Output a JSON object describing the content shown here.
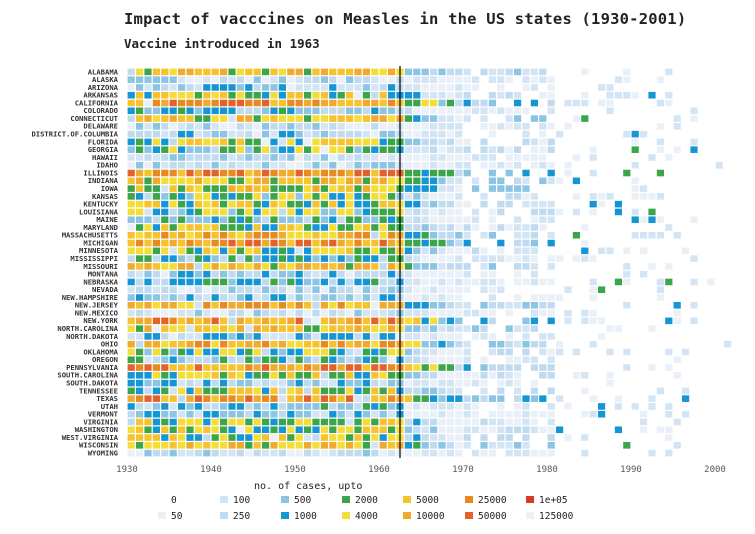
{
  "chart_data": {
    "type": "heatmap",
    "title": "Impact of vacccines on Measles in the US states (1930-2001)",
    "subtitle": "Vaccine introduced in 1963",
    "xlabel": "no. of cases, upto",
    "x_range": [
      1930,
      2000
    ],
    "x_ticks": [
      "1930",
      "1940",
      "1950",
      "1960",
      "1970",
      "1980",
      "1990",
      "2000"
    ],
    "vaccine_year": 1963,
    "states": [
      "ALABAMA",
      "ALASKA",
      "ARIZONA",
      "ARKANSAS",
      "CALIFORNIA",
      "COLORADO",
      "CONNECTICUT",
      "DELAWARE",
      "DISTRICT.OF.COLUMBIA",
      "FLORIDA",
      "GEORGIA",
      "HAWAII",
      "IDAHO",
      "ILLINOIS",
      "INDIANA",
      "IOWA",
      "KANSAS",
      "KENTUCKY",
      "LOUISIANA",
      "MAINE",
      "MARYLAND",
      "MASSACHUSETTS",
      "MICHIGAN",
      "MINNESOTA",
      "MISSISSIPPI",
      "MISSOURI",
      "MONTANA",
      "NEBRASKA",
      "NEVADA",
      "NEW.HAMPSHIRE",
      "NEW.JERSEY",
      "NEW.MEXICO",
      "NEW.YORK",
      "NORTH.CAROLINA",
      "NORTH.DAKOTA",
      "OHIO",
      "OKLAHOMA",
      "OREGON",
      "PENNSYLVANIA",
      "SOUTH.CAROLINA",
      "SOUTH.DAKOTA",
      "TENNESSEE",
      "TEXAS",
      "UTAH",
      "VERMONT",
      "VIRGINIA",
      "WASHINGTON",
      "WEST.VIRGINIA",
      "WISCONSIN",
      "WYOMING"
    ],
    "legend": {
      "thresholds": [
        "0",
        "50",
        "100",
        "250",
        "500",
        "1000",
        "2000",
        "4000",
        "5000",
        "10000",
        "25000",
        "50000",
        "1e+05",
        "125000"
      ],
      "colors": [
        "#ffffff",
        "#eaf0f8",
        "#d3e5f4",
        "#c0dbef",
        "#8cc4e4",
        "#1596d4",
        "#3ba54a",
        "#f5dd38",
        "#f6c22d",
        "#f0aa2d",
        "#e88a1f",
        "#e5612a",
        "#d63a21",
        "#e9f1f9"
      ]
    },
    "row_profile": [
      8,
      1,
      4,
      7,
      10,
      5,
      8,
      2,
      4,
      7,
      6,
      2,
      3,
      10,
      8,
      8,
      6,
      7,
      6,
      5,
      7,
      9,
      10,
      7,
      5,
      8,
      4,
      5,
      1,
      4,
      9,
      3,
      10,
      8,
      4,
      9,
      6,
      5,
      10,
      7,
      4,
      7,
      10,
      5,
      4,
      7,
      7,
      7,
      8,
      2
    ]
  }
}
